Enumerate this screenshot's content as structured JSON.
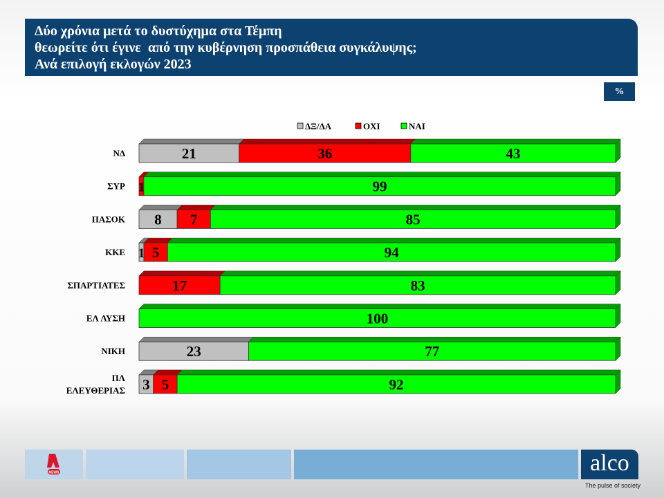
{
  "title": {
    "lines": [
      "Δύο χρόνια μετά το δυστύχημα στα Τέμπη",
      "θεωρείτε ότι έγινε  από την κυβέρνηση προσπάθεια συγκάλυψης;",
      "Ανά επιλογή εκλογών 2023"
    ]
  },
  "unit_label": "%",
  "chart_data": {
    "type": "bar",
    "orientation": "horizontal-stacked-100",
    "categories": [
      "ΝΔ",
      "ΣΥΡ",
      "ΠΑΣΟΚ",
      "ΚΚΕ",
      "ΣΠΑΡΤΙΑΤΕΣ",
      "ΕΛ ΛΥΣΗ",
      "ΝΙΚΗ",
      "ΠΛ ΕΛΕΥΘΕΡΙΑΣ"
    ],
    "series": [
      {
        "name": "ΔΞ/ΔΑ",
        "color": "#c0c0c0",
        "values": [
          21,
          0,
          8,
          1,
          0,
          0,
          23,
          3
        ]
      },
      {
        "name": "ΟΧΙ",
        "color": "#ff0000",
        "values": [
          36,
          1,
          7,
          5,
          17,
          0,
          0,
          5
        ]
      },
      {
        "name": "ΝΑΙ",
        "color": "#00ff00",
        "values": [
          43,
          99,
          85,
          94,
          83,
          100,
          77,
          92
        ]
      }
    ],
    "xlim": [
      0,
      100
    ],
    "legend": "top",
    "grid": false
  },
  "footer": {
    "logo_left": "NEWS",
    "brand": "alco",
    "tagline": "The pulse of society"
  }
}
